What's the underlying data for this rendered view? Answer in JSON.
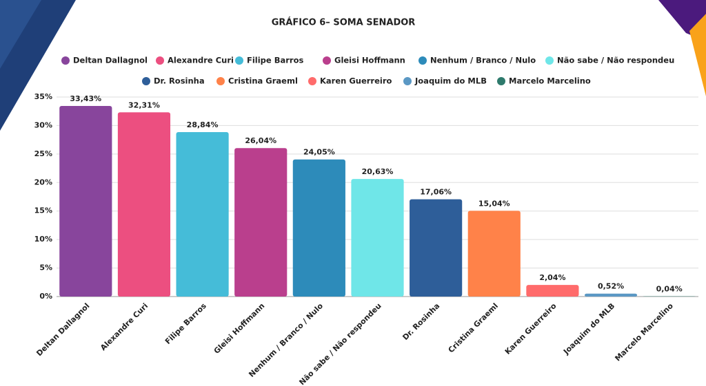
{
  "chart_data": {
    "type": "bar",
    "title": "GRÁFICO 6– SOMA SENADOR",
    "categories": [
      "Deltan Dallagnol",
      "Alexandre Curi",
      "Filipe Barros",
      "Gleisi Hoffmann",
      "Nenhum / Branco / Nulo",
      "Não sabe / Não respondeu",
      "Dr. Rosinha",
      "Cristina Graeml",
      "Karen Guerreiro",
      "Joaquim do MLB",
      "Marcelo Marcelino"
    ],
    "values": [
      33.43,
      32.31,
      28.84,
      26.04,
      24.05,
      20.63,
      17.06,
      15.04,
      2.04,
      0.52,
      0.04
    ],
    "value_labels": [
      "33,43%",
      "32,31%",
      "28,84%",
      "26,04%",
      "24,05%",
      "20,63%",
      "17,06%",
      "15,04%",
      "2,04%",
      "0,52%",
      "0,04%"
    ],
    "colors": [
      "#88459c",
      "#ec4f80",
      "#45bcd8",
      "#ba3f8d",
      "#2d8bba",
      "#6fe6e8",
      "#2e5e99",
      "#ff8249",
      "#ff6b6b",
      "#5b98c4",
      "#2e7a6c"
    ],
    "ylim": [
      0,
      35
    ],
    "yticks": [
      {
        "value": 0,
        "label": "0%"
      },
      {
        "value": 5,
        "label": "5%"
      },
      {
        "value": 10,
        "label": "10%"
      },
      {
        "value": 15,
        "label": "15%"
      },
      {
        "value": 20,
        "label": "20%"
      },
      {
        "value": 25,
        "label": "25%"
      },
      {
        "value": 30,
        "label": "30%"
      },
      {
        "value": 35,
        "label": "35%"
      }
    ],
    "grid": true,
    "legend": "top"
  }
}
